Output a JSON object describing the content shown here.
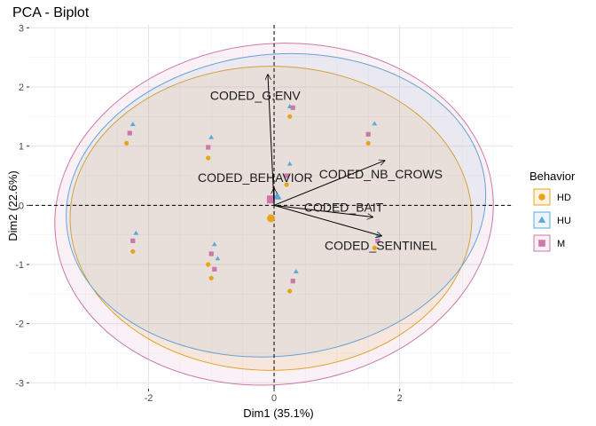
{
  "chart_data": {
    "type": "scatter",
    "title": "PCA - Biplot",
    "xlabel": "Dim1 (35.1%)",
    "ylabel": "Dim2 (22.6%)",
    "xlim": [
      -3.9,
      3.8
    ],
    "ylim": [
      -3.1,
      3.05
    ],
    "xticks": [
      -2,
      0,
      2
    ],
    "yticks": [
      -3,
      -2,
      -1,
      0,
      1,
      2,
      3
    ],
    "grid": true,
    "legend": {
      "title": "Behavior",
      "position": "right"
    },
    "colors": {
      "HD": "#E7A419",
      "HU": "#5AA9D8",
      "M": "#CC79A7"
    },
    "series": [
      {
        "name": "HD",
        "marker": "circle",
        "x": [
          -2.35,
          -1.05,
          0.25,
          1.5,
          -2.25,
          -1.05,
          -1.0,
          0.25,
          1.6,
          0.2
        ],
        "y": [
          1.05,
          0.8,
          1.5,
          1.05,
          -0.78,
          -1.0,
          -1.23,
          -1.45,
          -0.72,
          0.35
        ],
        "centroid": [
          -0.05,
          -0.22
        ],
        "ellipse": {
          "cx": -0.05,
          "cy": -0.22,
          "rx": 3.2,
          "ry": 2.57,
          "angle": 0
        }
      },
      {
        "name": "HU",
        "marker": "triangle",
        "x": [
          -2.25,
          -1.0,
          0.25,
          1.6,
          -2.2,
          -0.95,
          -0.9,
          0.35,
          1.65,
          0.25
        ],
        "y": [
          1.37,
          1.15,
          1.67,
          1.38,
          -0.47,
          -0.66,
          -0.9,
          -1.12,
          -0.52,
          0.7
        ],
        "centroid": [
          0.05,
          0.15
        ],
        "ellipse": {
          "cx": 0.03,
          "cy": 0.0,
          "rx": 3.35,
          "ry": 2.55,
          "angle": -6
        }
      },
      {
        "name": "M",
        "marker": "square",
        "x": [
          -2.3,
          -1.05,
          0.3,
          1.5,
          -2.25,
          -1.0,
          -0.95,
          0.3,
          1.65,
          0.2
        ],
        "y": [
          1.22,
          0.98,
          1.65,
          1.2,
          -0.6,
          -0.82,
          -1.08,
          -1.28,
          -0.6,
          0.5
        ],
        "centroid": [
          -0.05,
          0.1
        ],
        "ellipse": {
          "cx": 0.0,
          "cy": -0.15,
          "rx": 3.5,
          "ry": 2.88,
          "angle": -6
        }
      }
    ],
    "variables": [
      {
        "name": "CODED_G.ENV",
        "x": -0.1,
        "y": 2.22,
        "label_x": -0.3,
        "label_y": 1.86
      },
      {
        "name": "CODED_BEHAVIOR",
        "x": 0.0,
        "y": 0.3,
        "label_x": -0.3,
        "label_y": 0.47
      },
      {
        "name": "CODED_NB_CROWS",
        "x": 1.77,
        "y": 0.76,
        "label_x": 1.7,
        "label_y": 0.53
      },
      {
        "name": "CODED_BAIT",
        "x": 1.58,
        "y": -0.2,
        "label_x": 1.11,
        "label_y": -0.03
      },
      {
        "name": "CODED_SENTINEL",
        "x": 1.72,
        "y": -0.52,
        "label_x": 1.7,
        "label_y": -0.68
      }
    ]
  }
}
